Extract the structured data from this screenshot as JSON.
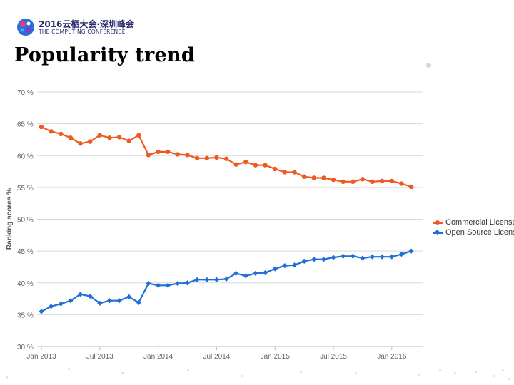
{
  "header": {
    "logo_line1": "2016云栖大会·深圳峰会",
    "logo_line2": "THE COMPUTING CONFERENCE",
    "page_title": "Popularity trend"
  },
  "colors": {
    "commercial": "#ee5a24",
    "open_source": "#1f6fd6",
    "grid": "#d9d9d9",
    "tick_text": "#666666"
  },
  "chart_data": {
    "type": "line",
    "title": "Popularity trend",
    "xlabel": "",
    "ylabel": "Ranking scores %",
    "ylim": [
      30,
      70
    ],
    "y_ticks": [
      "70 %",
      "65 %",
      "60 %",
      "55 %",
      "50 %",
      "45 %",
      "40 %",
      "35 %",
      "30 %"
    ],
    "x_ticks": [
      {
        "label": "Jan 2013",
        "index": 0
      },
      {
        "label": "Jul 2013",
        "index": 6
      },
      {
        "label": "Jan 2014",
        "index": 12
      },
      {
        "label": "Jul 2014",
        "index": 18
      },
      {
        "label": "Jan 2015",
        "index": 24
      },
      {
        "label": "Jul 2015",
        "index": 30
      },
      {
        "label": "Jan 2016",
        "index": 36
      }
    ],
    "x_range": [
      0,
      38.8
    ],
    "series": [
      {
        "name": "Commercial License",
        "marker": "circle",
        "values": [
          64.5,
          63.8,
          63.4,
          62.8,
          61.9,
          62.2,
          63.2,
          62.8,
          62.9,
          62.3,
          63.2,
          60.1,
          60.6,
          60.6,
          60.2,
          60.1,
          59.6,
          59.6,
          59.7,
          59.5,
          58.6,
          59.0,
          58.5,
          58.5,
          57.9,
          57.4,
          57.4,
          56.7,
          56.5,
          56.5,
          56.2,
          55.9,
          55.9,
          56.3,
          55.9,
          56.0,
          56.0,
          55.6,
          55.1
        ]
      },
      {
        "name": "Open Source License",
        "marker": "diamond",
        "values": [
          35.5,
          36.3,
          36.7,
          37.2,
          38.2,
          37.9,
          36.8,
          37.2,
          37.2,
          37.8,
          36.9,
          39.9,
          39.6,
          39.6,
          39.9,
          40.0,
          40.5,
          40.5,
          40.5,
          40.6,
          41.5,
          41.1,
          41.5,
          41.6,
          42.2,
          42.7,
          42.8,
          43.4,
          43.7,
          43.7,
          44.0,
          44.2,
          44.2,
          43.9,
          44.1,
          44.1,
          44.1,
          44.5,
          45.0
        ]
      }
    ],
    "legend_position": "right"
  }
}
